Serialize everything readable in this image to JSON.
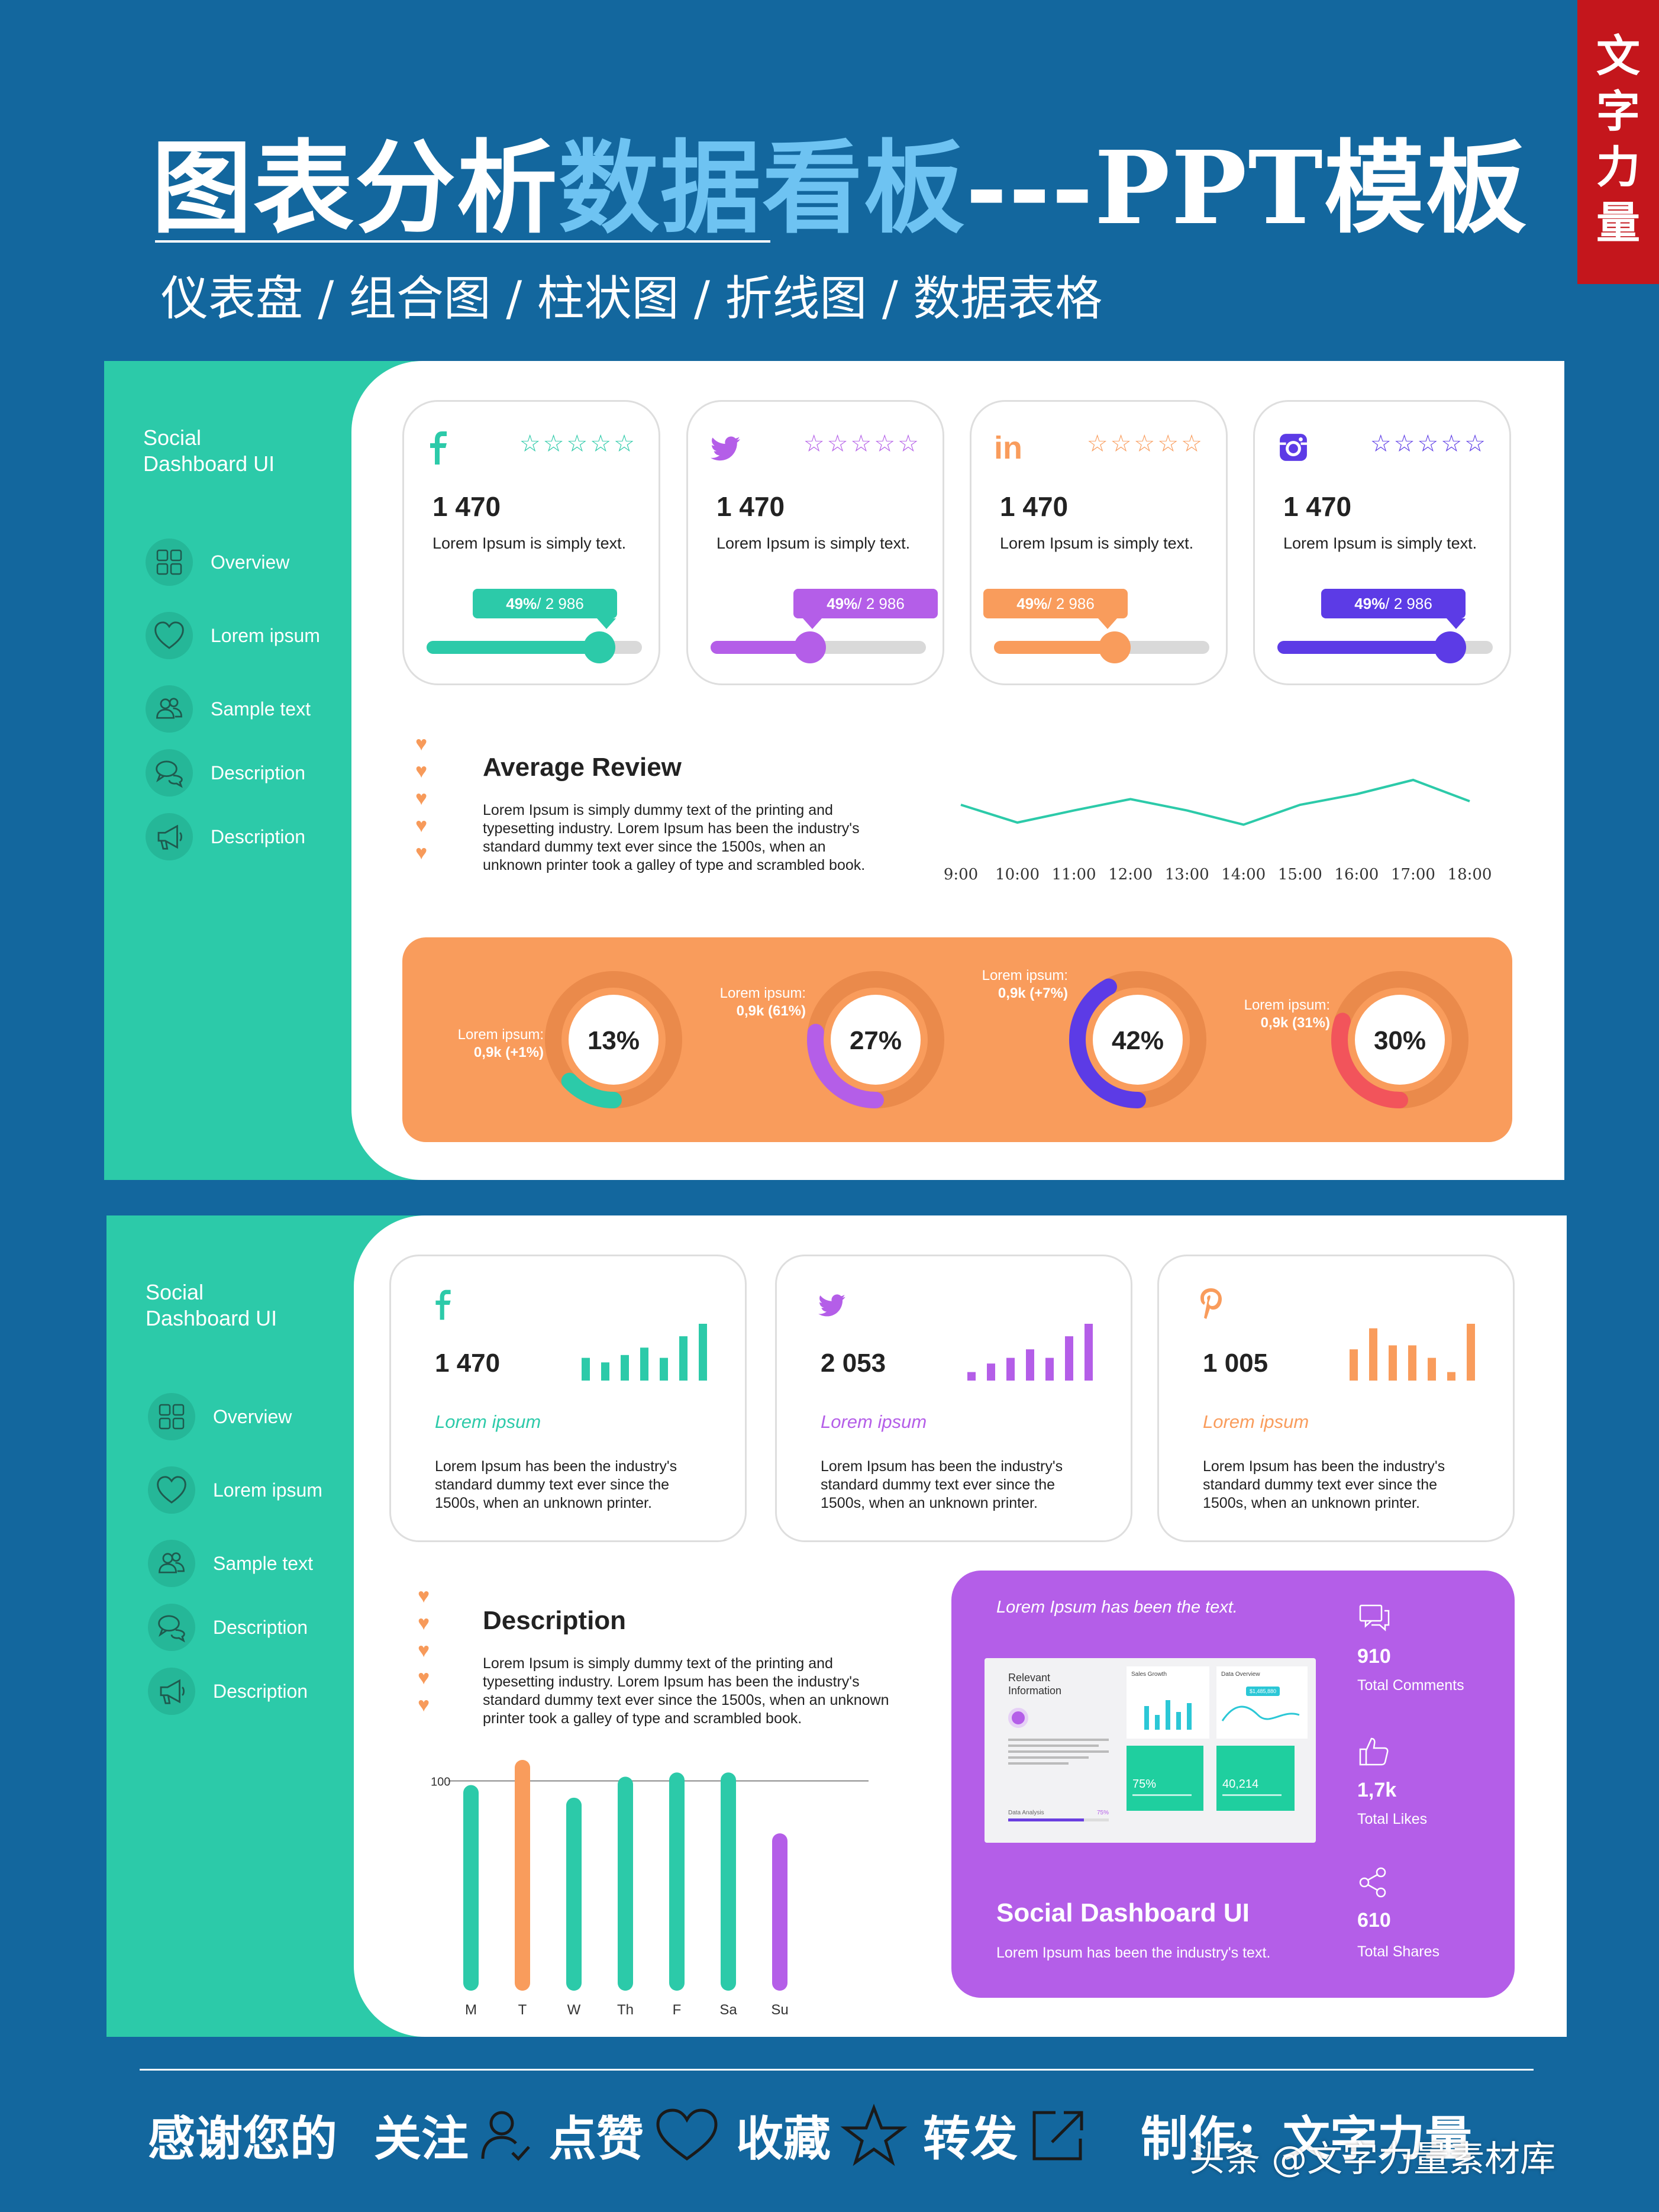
{
  "header": {
    "title_main": "图表分析",
    "title_highlight": "数据看板",
    "title_suffix": "---PPT模板",
    "subtitle": "仪表盘 / 组合图 / 柱状图 / 折线图 / 数据表格",
    "brand_stamp": "文字力量"
  },
  "colors": {
    "teal": "#2ccaa9",
    "purple": "#b45ee8",
    "orange": "#f99c5c",
    "indigo": "#5c3be6",
    "blue_bg": "#13679e"
  },
  "panel1": {
    "brand": [
      "Social",
      "Dashboard UI"
    ],
    "nav": [
      {
        "label": "Overview",
        "icon": "grid-icon"
      },
      {
        "label": "Lorem ipsum",
        "icon": "heart-icon"
      },
      {
        "label": "Sample text",
        "icon": "users-icon"
      },
      {
        "label": "Description",
        "icon": "chat-icon"
      },
      {
        "label": "Description",
        "icon": "megaphone-icon"
      }
    ],
    "cards": [
      {
        "icon": "facebook-icon",
        "value": "1 470",
        "subtitle": "Lorem Ipsum is simply text.",
        "bubble_pct": "49%",
        "bubble_total": " / 2 986",
        "progress": 0.8,
        "color": "#2ccaa9",
        "stars": "☆☆☆☆☆"
      },
      {
        "icon": "twitter-icon",
        "value": "1 470",
        "subtitle": "Lorem Ipsum is simply text.",
        "bubble_pct": "49%",
        "bubble_total": " / 2 986",
        "progress": 0.46,
        "color": "#b45ee8",
        "stars": "☆☆☆☆☆"
      },
      {
        "icon": "linkedin-icon",
        "value": "1 470",
        "subtitle": "Lorem Ipsum is simply text.",
        "bubble_pct": "49%",
        "bubble_total": " / 2 986",
        "progress": 0.56,
        "color": "#f99c5c",
        "stars": "☆☆☆☆☆"
      },
      {
        "icon": "instagram-icon",
        "value": "1 470",
        "subtitle": "Lorem Ipsum is simply text.",
        "bubble_pct": "49%",
        "bubble_total": " / 2 986",
        "progress": 0.8,
        "color": "#5c3be6",
        "stars": "☆☆☆☆☆"
      }
    ],
    "review": {
      "title": "Average Review",
      "text": "Lorem Ipsum is simply dummy text of the printing and typesetting industry. Lorem Ipsum has been the industry's standard dummy text ever since the 1500s, when an unknown printer took a galley of type and scrambled book."
    },
    "gauges": [
      {
        "label": "Lorem ipsum:",
        "value_text": "0,9k (+1%)",
        "percent": 13,
        "percent_text": "13%",
        "color": "#2ccaa9"
      },
      {
        "label": "Lorem ipsum:",
        "value_text": "0,9k (61%)",
        "percent": 27,
        "percent_text": "27%",
        "color": "#b45ee8"
      },
      {
        "label": "Lorem ipsum:",
        "value_text": "0,9k (+7%)",
        "percent": 42,
        "percent_text": "42%",
        "color": "#5c3be6"
      },
      {
        "label": "Lorem ipsum:",
        "value_text": "0,9k (31%)",
        "percent": 30,
        "percent_text": "30%",
        "color": "#f2545b"
      }
    ]
  },
  "panel2": {
    "brand": [
      "Social",
      "Dashboard UI"
    ],
    "nav": [
      {
        "label": "Overview",
        "icon": "grid-icon"
      },
      {
        "label": "Lorem ipsum",
        "icon": "heart-icon"
      },
      {
        "label": "Sample text",
        "icon": "users-icon"
      },
      {
        "label": "Description",
        "icon": "chat-icon"
      },
      {
        "label": "Description",
        "icon": "megaphone-icon"
      }
    ],
    "cards": [
      {
        "icon": "facebook-icon",
        "value": "1 470",
        "lorem": "Lorem ipsum",
        "text": "Lorem Ipsum has been the industry's standard dummy text ever since the 1500s, when an unknown printer.",
        "color": "#2ccaa9",
        "bars": [
          0.4,
          0.32,
          0.45,
          0.58,
          0.4,
          0.78,
          1.0
        ]
      },
      {
        "icon": "twitter-icon",
        "value": "2 053",
        "lorem": "Lorem ipsum",
        "text": "Lorem Ipsum has been the industry's standard dummy text ever since the 1500s, when an unknown printer.",
        "color": "#b45ee8",
        "bars": [
          0.15,
          0.3,
          0.4,
          0.55,
          0.4,
          0.78,
          1.0
        ]
      },
      {
        "icon": "pinterest-icon",
        "value": "1 005",
        "lorem": "Lorem ipsum",
        "text": "Lorem Ipsum has been the industry's standard dummy text ever since the 1500s, when an unknown printer.",
        "color": "#f99c5c",
        "bars": [
          0.55,
          0.92,
          0.62,
          0.62,
          0.4,
          0.15,
          1.0
        ]
      }
    ],
    "description": {
      "title": "Description",
      "text": "Lorem Ipsum is simply dummy text of the printing and typesetting industry. Lorem Ipsum has been the industry's standard dummy text ever since the 1500s, when an unknown printer took a galley of type and scrambled book."
    },
    "purple": {
      "italic": "Lorem Ipsum has been the text.",
      "title": "Social Dashboard UI",
      "subtitle": "Lorem Ipsum has been the industry's text.",
      "preview": {
        "heading": "Relevant Information",
        "sales": "Sales Growth",
        "overview": "Data Overview",
        "badge": "$1,485,880",
        "analysis": "Data Analysis",
        "analysis_pct": "75%",
        "kpi1": "75%",
        "kpi2": "40,214"
      },
      "stats": [
        {
          "icon": "comment-icon",
          "value": "910",
          "label": "Total Comments"
        },
        {
          "icon": "like-icon",
          "value": "1,7k",
          "label": "Total Likes"
        },
        {
          "icon": "share-icon",
          "value": "610",
          "label": "Total Shares"
        }
      ]
    }
  },
  "chart_data": [
    {
      "type": "line",
      "x": [
        "9:00",
        "10:00",
        "11:00",
        "12:00",
        "13:00",
        "14:00",
        "15:00",
        "16:00",
        "17:00",
        "18:00"
      ],
      "series": [
        {
          "values": [
            50,
            25,
            42,
            58,
            42,
            22,
            50,
            65,
            85,
            55
          ],
          "color": "#2ccaa9"
        }
      ],
      "title": "",
      "xlabel": "",
      "ylabel": "",
      "ylim": [
        0,
        100
      ],
      "grid": false
    },
    {
      "type": "bar",
      "categories": [
        "M",
        "T",
        "W",
        "Th",
        "F",
        "Sa",
        "Su"
      ],
      "values": [
        98,
        110,
        92,
        102,
        104,
        104,
        75
      ],
      "colors": [
        "#2ccaa9",
        "#f99c5c",
        "#2ccaa9",
        "#2ccaa9",
        "#2ccaa9",
        "#2ccaa9",
        "#b45ee8"
      ],
      "reference_line": 100,
      "ytick_labels": [
        "100"
      ],
      "title": "",
      "xlabel": "",
      "ylabel": "",
      "ylim": [
        0,
        110
      ],
      "grid": false
    }
  ],
  "footer": {
    "thanks": "感谢您的",
    "follow": "关注",
    "like": "点赞",
    "collect": "收藏",
    "share": "转发",
    "maker": "制作：文字力量",
    "watermark": "头条 @文字力量素材库"
  }
}
